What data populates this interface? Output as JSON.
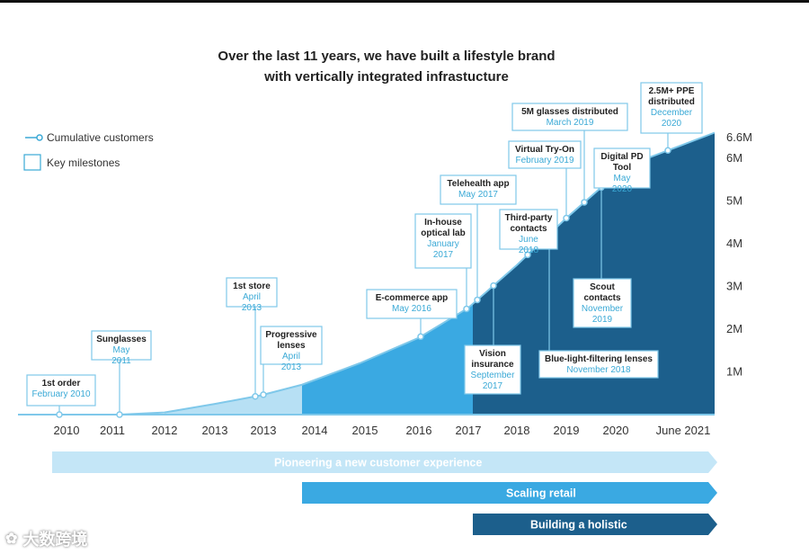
{
  "title_line1": "Over the last 11 years, we have built a lifestyle brand",
  "title_line2": "with vertically integrated infrastucture",
  "legend": {
    "customers": "Cumulative customers",
    "milestones": "Key milestones"
  },
  "watermark": "大数跨境",
  "colors": {
    "light": "#b7e0f4",
    "mid": "#3aa9e2",
    "dark": "#1c5f8c",
    "curve": "#7fc8ea",
    "text": "#222222",
    "accent": "#3aa9d6"
  },
  "chart_data": {
    "type": "area",
    "x": [
      "2010",
      "2011",
      "2012",
      "2013",
      "2013",
      "2014",
      "2015",
      "2016",
      "2017",
      "2018",
      "2019",
      "2020",
      "June 2021"
    ],
    "y_ticks": [
      "1M",
      "2M",
      "3M",
      "4M",
      "5M",
      "6M",
      "6.6M"
    ],
    "ylim": [
      0,
      6.6
    ],
    "series": [
      {
        "name": "Cumulative customers",
        "values": [
          0,
          0,
          0.05,
          0.25,
          0.45,
          0.7,
          1.2,
          1.8,
          2.5,
          3.5,
          4.6,
          5.8,
          6.6
        ]
      }
    ],
    "milestones": [
      {
        "title": [
          "1st order"
        ],
        "date": "February 2010"
      },
      {
        "title": [
          "Sunglasses"
        ],
        "date": "May 2011"
      },
      {
        "title": [
          "1st store"
        ],
        "date": "April 2013"
      },
      {
        "title": [
          "Progressive",
          "lenses"
        ],
        "date": "April 2013"
      },
      {
        "title": [
          "E-commerce app"
        ],
        "date": "May 2016"
      },
      {
        "title": [
          "In-house",
          "optical lab"
        ],
        "date": "January 2017"
      },
      {
        "title": [
          "Telehealth app"
        ],
        "date": "May 2017"
      },
      {
        "title": [
          "Vision",
          "insurance"
        ],
        "date": "September 2017"
      },
      {
        "title": [
          "Third-party",
          "contacts"
        ],
        "date": "June 2018"
      },
      {
        "title": [
          "Blue-light-filtering lenses"
        ],
        "date": "November 2018"
      },
      {
        "title": [
          "Virtual Try-On"
        ],
        "date": "February 2019"
      },
      {
        "title": [
          "5M glasses distributed"
        ],
        "date": "March 2019"
      },
      {
        "title": [
          "Scout",
          "contacts"
        ],
        "date": "November 2019"
      },
      {
        "title": [
          "Digital PD",
          "Tool"
        ],
        "date": "May 2020"
      },
      {
        "title": [
          "2.5M+ PPE",
          "distributed"
        ],
        "date": "December 2020"
      }
    ],
    "phases": [
      "Pioneering a new customer experience",
      "Scaling retail",
      "Building a holistic"
    ]
  }
}
